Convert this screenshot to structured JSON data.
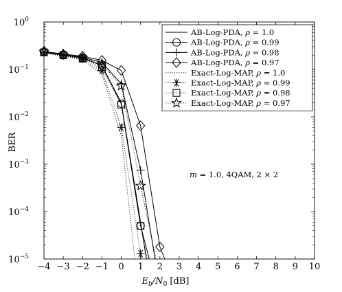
{
  "chart_data": {
    "type": "line",
    "xlabel_main": "E",
    "xlabel_sub1": "b",
    "xlabel_mid": "/N",
    "xlabel_sub2": "0",
    "xlabel_unit": " [dB]",
    "ylabel": "BER",
    "xlim": [
      -4,
      10
    ],
    "ylim_log10": [
      -5,
      0
    ],
    "y_scale": "log",
    "grid": false,
    "legend_position": "top-right",
    "x_ticks": [
      "−4",
      "−3",
      "−2",
      "−1",
      "0",
      "1",
      "2",
      "3",
      "4",
      "5",
      "6",
      "7",
      "8",
      "9",
      "10"
    ],
    "y_ticks": [
      {
        "base": "10",
        "exp": "0"
      },
      {
        "base": "10",
        "exp": "−1"
      },
      {
        "base": "10",
        "exp": "−2"
      },
      {
        "base": "10",
        "exp": "−3"
      },
      {
        "base": "10",
        "exp": "−4"
      },
      {
        "base": "10",
        "exp": "−5"
      }
    ],
    "annotation": {
      "m_label": "m",
      "text": " = 1.0, 4QAM, 2 × 2"
    },
    "series": [
      {
        "name_prefix": "AB-Log-PDA, ",
        "rho_label": "ρ",
        "name_suffix": " = 1.0",
        "style": "solid",
        "marker": "none",
        "x": [
          -4,
          -3,
          -2,
          -1,
          0,
          1,
          1.3
        ],
        "y": [
          0.23,
          0.2,
          0.175,
          0.12,
          0.02,
          6e-05,
          1e-05
        ]
      },
      {
        "name_prefix": "AB-Log-PDA, ",
        "rho_label": "ρ",
        "name_suffix": " = 0.99",
        "style": "solid",
        "marker": "circle",
        "x": [
          -4,
          -3,
          -2,
          -1,
          0,
          1,
          1.45
        ],
        "y": [
          0.23,
          0.2,
          0.175,
          0.12,
          0.019,
          5e-05,
          1e-05
        ]
      },
      {
        "name_prefix": "AB-Log-PDA, ",
        "rho_label": "ρ",
        "name_suffix": " = 0.98",
        "style": "solid",
        "marker": "plus",
        "x": [
          -4,
          -3,
          -2,
          -1,
          0,
          1,
          1.75
        ],
        "y": [
          0.235,
          0.205,
          0.18,
          0.14,
          0.05,
          0.00075,
          1e-05
        ]
      },
      {
        "name_prefix": "AB-Log-PDA, ",
        "rho_label": "ρ",
        "name_suffix": " = 0.97",
        "style": "solid",
        "marker": "diamond",
        "x": [
          -4,
          -3,
          -2,
          -1,
          0,
          1,
          2,
          2.25
        ],
        "y": [
          0.24,
          0.21,
          0.19,
          0.155,
          0.095,
          0.0065,
          1.8e-05,
          1e-05
        ]
      },
      {
        "name_prefix": "Exact-Log-MAP, ",
        "rho_label": "ρ",
        "name_suffix": " = 1.0",
        "style": "dotted",
        "marker": "none",
        "x": [
          -4,
          -3,
          -2,
          -1,
          0,
          0.7
        ],
        "y": [
          0.22,
          0.19,
          0.16,
          0.08,
          0.004,
          1e-05
        ]
      },
      {
        "name_prefix": "Exact-Log-MAP, ",
        "rho_label": "ρ",
        "name_suffix": " = 0.99",
        "style": "dotted",
        "marker": "asterisk",
        "x": [
          -4,
          -3,
          -2,
          -1,
          0,
          1,
          1.1
        ],
        "y": [
          0.225,
          0.195,
          0.165,
          0.095,
          0.006,
          1.3e-05,
          1e-05
        ]
      },
      {
        "name_prefix": "Exact-Log-MAP, ",
        "rho_label": "ρ",
        "name_suffix": " = 0.98",
        "style": "dotted",
        "marker": "square",
        "x": [
          -4,
          -3,
          -2,
          -1,
          0,
          1,
          1.35
        ],
        "y": [
          0.23,
          0.2,
          0.17,
          0.11,
          0.018,
          5e-05,
          1e-05
        ]
      },
      {
        "name_prefix": "Exact-Log-MAP, ",
        "rho_label": "ρ",
        "name_suffix": " = 0.97",
        "style": "dotted",
        "marker": "star",
        "x": [
          -4,
          -3,
          -2,
          -1,
          0,
          1,
          1.8
        ],
        "y": [
          0.235,
          0.205,
          0.175,
          0.13,
          0.045,
          0.00035,
          1e-05
        ]
      }
    ]
  }
}
